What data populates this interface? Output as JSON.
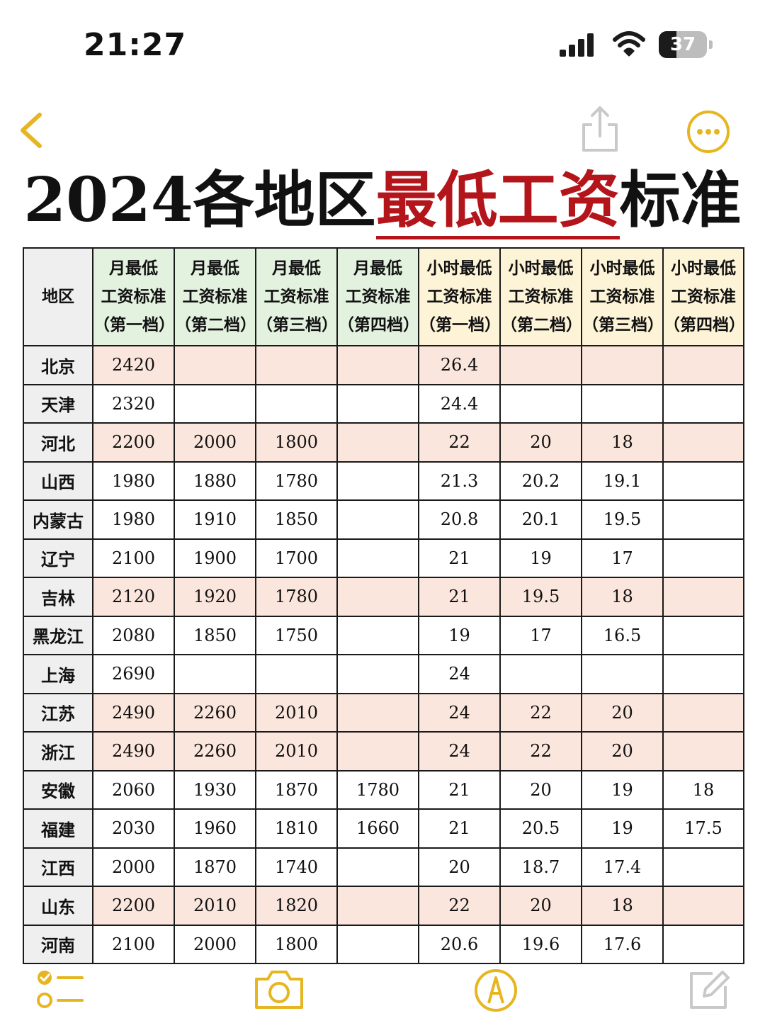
{
  "status_bar": {
    "time": "21:27",
    "battery_level": "37",
    "icons": [
      "signal-icon",
      "wifi-icon",
      "battery-icon"
    ]
  },
  "nav": {
    "icons": [
      "back-chevron-icon",
      "share-icon",
      "more-icon"
    ],
    "accent_color": "#e6b520"
  },
  "title": {
    "prefix": "2024各地区",
    "highlight": "最低工资",
    "suffix": "标准",
    "highlight_color": "#b3151b"
  },
  "table": {
    "region_header": "地区",
    "column_headers": [
      {
        "line1": "月最低",
        "line2": "工资标准",
        "line3": "（第一档）"
      },
      {
        "line1": "月最低",
        "line2": "工资标准",
        "line3": "（第二档）"
      },
      {
        "line1": "月最低",
        "line2": "工资标准",
        "line3": "（第三档）"
      },
      {
        "line1": "月最低",
        "line2": "工资标准",
        "line3": "（第四档）"
      },
      {
        "line1": "小时最低",
        "line2": "工资标准",
        "line3": "（第一档）"
      },
      {
        "line1": "小时最低",
        "line2": "工资标准",
        "line3": "（第二档）"
      },
      {
        "line1": "小时最低",
        "line2": "工资标准",
        "line3": "（第三档）"
      },
      {
        "line1": "小时最低",
        "line2": "工资标准",
        "line3": "（第四档）"
      }
    ],
    "colors": {
      "monthly_header": "#e3f1df",
      "hourly_header": "#fdf3d6",
      "region_cell": "#efefef",
      "highlighted_row": "#fbe6dd"
    },
    "rows": [
      {
        "region": "北京",
        "highlight": true,
        "values": [
          "2420",
          "",
          "",
          "",
          "26.4",
          "",
          "",
          ""
        ]
      },
      {
        "region": "天津",
        "highlight": false,
        "values": [
          "2320",
          "",
          "",
          "",
          "24.4",
          "",
          "",
          ""
        ]
      },
      {
        "region": "河北",
        "highlight": true,
        "values": [
          "2200",
          "2000",
          "1800",
          "",
          "22",
          "20",
          "18",
          ""
        ]
      },
      {
        "region": "山西",
        "highlight": false,
        "values": [
          "1980",
          "1880",
          "1780",
          "",
          "21.3",
          "20.2",
          "19.1",
          ""
        ]
      },
      {
        "region": "内蒙古",
        "highlight": false,
        "values": [
          "1980",
          "1910",
          "1850",
          "",
          "20.8",
          "20.1",
          "19.5",
          ""
        ]
      },
      {
        "region": "辽宁",
        "highlight": false,
        "values": [
          "2100",
          "1900",
          "1700",
          "",
          "21",
          "19",
          "17",
          ""
        ]
      },
      {
        "region": "吉林",
        "highlight": true,
        "values": [
          "2120",
          "1920",
          "1780",
          "",
          "21",
          "19.5",
          "18",
          ""
        ]
      },
      {
        "region": "黑龙江",
        "highlight": false,
        "values": [
          "2080",
          "1850",
          "1750",
          "",
          "19",
          "17",
          "16.5",
          ""
        ]
      },
      {
        "region": "上海",
        "highlight": false,
        "values": [
          "2690",
          "",
          "",
          "",
          "24",
          "",
          "",
          ""
        ]
      },
      {
        "region": "江苏",
        "highlight": true,
        "values": [
          "2490",
          "2260",
          "2010",
          "",
          "24",
          "22",
          "20",
          ""
        ]
      },
      {
        "region": "浙江",
        "highlight": true,
        "values": [
          "2490",
          "2260",
          "2010",
          "",
          "24",
          "22",
          "20",
          ""
        ]
      },
      {
        "region": "安徽",
        "highlight": false,
        "values": [
          "2060",
          "1930",
          "1870",
          "1780",
          "21",
          "20",
          "19",
          "18"
        ]
      },
      {
        "region": "福建",
        "highlight": false,
        "values": [
          "2030",
          "1960",
          "1810",
          "1660",
          "21",
          "20.5",
          "19",
          "17.5"
        ]
      },
      {
        "region": "江西",
        "highlight": false,
        "values": [
          "2000",
          "1870",
          "1740",
          "",
          "20",
          "18.7",
          "17.4",
          ""
        ]
      },
      {
        "region": "山东",
        "highlight": true,
        "values": [
          "2200",
          "2010",
          "1820",
          "",
          "22",
          "20",
          "18",
          ""
        ]
      },
      {
        "region": "河南",
        "highlight": false,
        "values": [
          "2100",
          "2000",
          "1800",
          "",
          "20.6",
          "19.6",
          "17.6",
          ""
        ]
      }
    ]
  },
  "toolbar": {
    "icons": [
      "checklist-icon",
      "camera-icon",
      "markup-pen-icon",
      "compose-icon"
    ]
  }
}
